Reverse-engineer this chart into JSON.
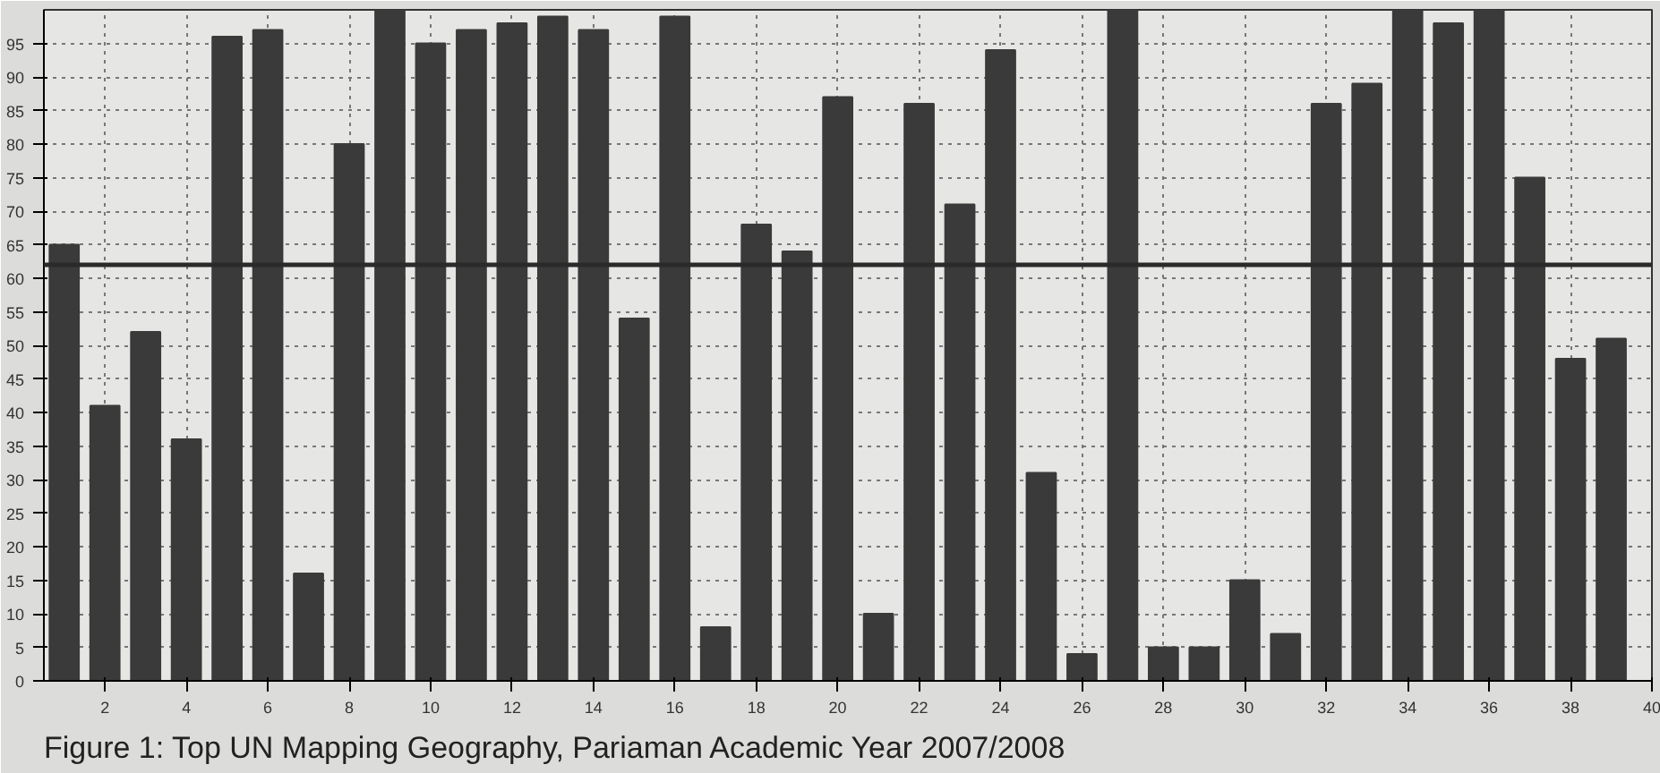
{
  "chart_data": {
    "type": "bar",
    "x": [
      1,
      2,
      3,
      4,
      5,
      6,
      7,
      8,
      9,
      10,
      11,
      12,
      13,
      14,
      15,
      16,
      17,
      18,
      19,
      20,
      21,
      22,
      23,
      24,
      25,
      26,
      27,
      28,
      29,
      30,
      31,
      32,
      33,
      34,
      35,
      36,
      37,
      38,
      39
    ],
    "values": [
      65,
      41,
      52,
      36,
      96,
      97,
      16,
      80,
      100,
      95,
      97,
      98,
      99,
      97,
      54,
      99,
      8,
      68,
      64,
      87,
      10,
      86,
      71,
      94,
      31,
      4,
      100,
      5,
      5,
      15,
      7,
      86,
      89,
      100,
      98,
      100,
      75,
      48,
      51
    ],
    "color": "#3a3a3a",
    "xlim": [
      0.5,
      40
    ],
    "xticks": [
      2,
      4,
      6,
      8,
      10,
      12,
      14,
      16,
      18,
      20,
      22,
      24,
      26,
      28,
      30,
      32,
      34,
      36,
      38,
      40
    ],
    "ylim": [
      0,
      100
    ],
    "yticks": [
      0,
      5,
      10,
      15,
      20,
      25,
      30,
      35,
      40,
      45,
      50,
      55,
      60,
      65,
      70,
      75,
      80,
      85,
      90,
      95
    ],
    "grid": true,
    "ref_lines": [
      {
        "axis": "y",
        "value": 62,
        "color": "#2a2a2a"
      }
    ],
    "annotations": [
      "Figure 1: Top UN Mapping Geography, Pariaman Academic Year 2007/2008"
    ]
  }
}
